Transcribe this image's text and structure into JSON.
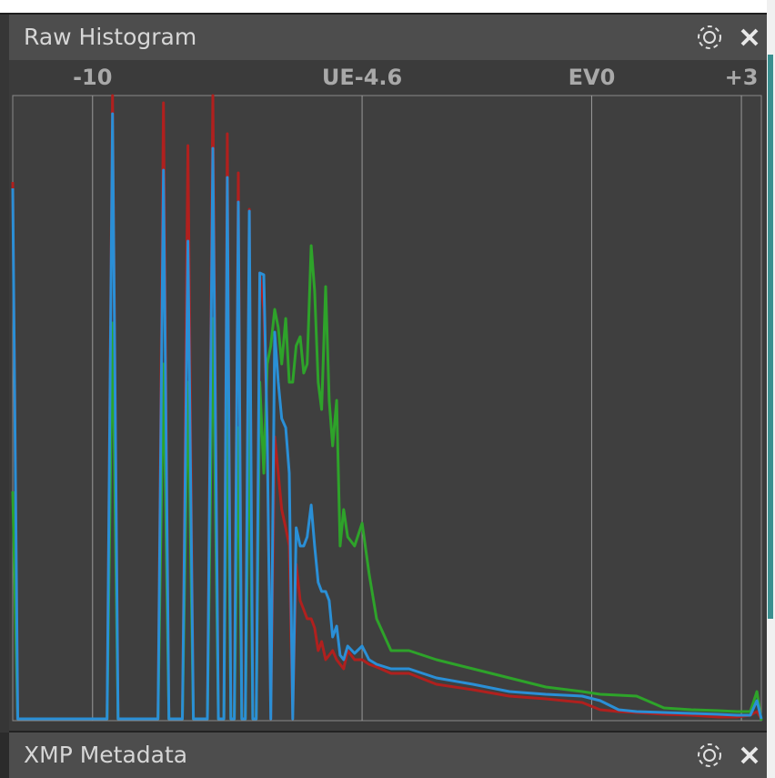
{
  "panels": [
    {
      "title": "Raw Histogram"
    },
    {
      "title": "XMP Metadata"
    }
  ],
  "chart_data": {
    "type": "line",
    "x": [
      -11.6,
      -11.5,
      -9.71,
      -9.6,
      -9.49,
      -8.69,
      -8.58,
      -8.47,
      -8.2,
      -8.09,
      -7.98,
      -7.7,
      -7.59,
      -7.48,
      -7.37,
      -7.3,
      -7.23,
      -7.16,
      -7.08,
      -7.01,
      -6.94,
      -6.86,
      -6.79,
      -6.72,
      -6.65,
      -6.57,
      -6.5,
      -6.43,
      -6.35,
      -6.28,
      -6.21,
      -6.13,
      -6.06,
      -5.99,
      -5.92,
      -5.84,
      -5.77,
      -5.7,
      -5.62,
      -5.55,
      -5.48,
      -5.41,
      -5.33,
      -5.26,
      -5.19,
      -5.11,
      -5.04,
      -4.97,
      -4.89,
      -4.75,
      -4.6,
      -4.46,
      -4.31,
      -4.02,
      -3.66,
      -3.11,
      -2.38,
      -1.65,
      -0.92,
      -0.19,
      0.17,
      0.54,
      0.9,
      1.45,
      2.0,
      2.54,
      2.91,
      3.18,
      3.31,
      3.4
    ],
    "series": [
      {
        "color": "#b0201e",
        "values": [
          592,
          2,
          2,
          687,
          2,
          2,
          679,
          2,
          2,
          632,
          2,
          2,
          687,
          2,
          2,
          645,
          2,
          2,
          602,
          2,
          2,
          562,
          2,
          2,
          492,
          452,
          312,
          2,
          312,
          272,
          232,
          212,
          192,
          2,
          172,
          132,
          122,
          112,
          112,
          102,
          77,
          87,
          67,
          72,
          77,
          67,
          62,
          57,
          77,
          67,
          67,
          62,
          59,
          52,
          52,
          40,
          34,
          27,
          24,
          20,
          12,
          10,
          9,
          7,
          6,
          4,
          4,
          6,
          10,
          2
        ]
      },
      {
        "color": "#2ea32a",
        "values": [
          252,
          2,
          2,
          437,
          2,
          2,
          392,
          2,
          2,
          372,
          2,
          2,
          442,
          2,
          2,
          382,
          2,
          2,
          322,
          2,
          2,
          352,
          2,
          2,
          372,
          272,
          392,
          412,
          452,
          432,
          392,
          442,
          372,
          372,
          412,
          422,
          382,
          392,
          522,
          472,
          372,
          342,
          477,
          352,
          302,
          352,
          192,
          232,
          202,
          192,
          217,
          162,
          112,
          77,
          77,
          67,
          57,
          47,
          37,
          32,
          29,
          28,
          27,
          14,
          12,
          11,
          10,
          10,
          32,
          0
        ]
      },
      {
        "color": "#2a8fd6",
        "values": [
          585,
          2,
          2,
          667,
          2,
          2,
          605,
          2,
          2,
          527,
          2,
          2,
          629,
          2,
          2,
          597,
          2,
          2,
          570,
          2,
          2,
          560,
          2,
          2,
          492,
          490,
          312,
          2,
          427,
          372,
          332,
          322,
          272,
          2,
          212,
          192,
          192,
          202,
          237,
          192,
          152,
          142,
          142,
          132,
          92,
          104,
          72,
          67,
          82,
          74,
          82,
          67,
          62,
          57,
          57,
          47,
          40,
          32,
          29,
          27,
          22,
          12,
          10,
          9,
          8,
          7,
          6,
          6,
          22,
          2
        ]
      }
    ],
    "xlim": [
      -11.6,
      3.4
    ],
    "xticks": [
      -10,
      {
        "value": -4.6,
        "label": "UE-4.6"
      },
      {
        "value": 0,
        "label": "EV0"
      },
      {
        "value": 3,
        "label": "+3"
      }
    ],
    "ylim": [
      0,
      687
    ],
    "grid": true
  }
}
